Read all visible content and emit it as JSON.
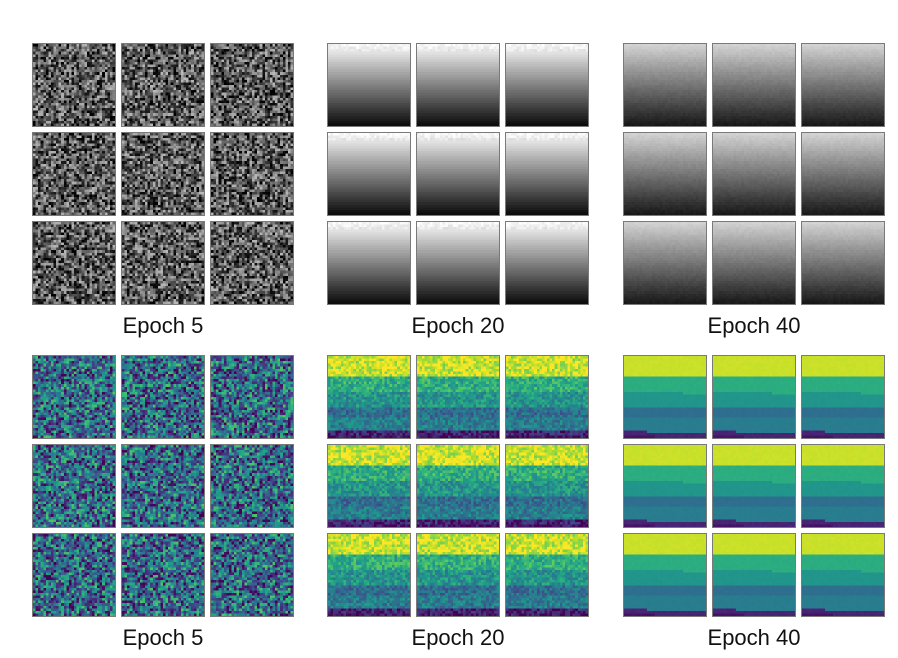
{
  "figure": {
    "rows": [
      {
        "colormap": "grayscale",
        "panels": [
          {
            "caption": "Epoch 5",
            "pattern": "noise"
          },
          {
            "caption": "Epoch 20",
            "pattern": "smooth-gradient"
          },
          {
            "caption": "Epoch 40",
            "pattern": "smooth-gradient-soft"
          }
        ]
      },
      {
        "colormap": "viridis",
        "panels": [
          {
            "caption": "Epoch 5",
            "pattern": "noise"
          },
          {
            "caption": "Epoch 20",
            "pattern": "noisy-bands"
          },
          {
            "caption": "Epoch 40",
            "pattern": "clean-bands"
          }
        ]
      }
    ],
    "tiles_per_panel": "3x3"
  }
}
